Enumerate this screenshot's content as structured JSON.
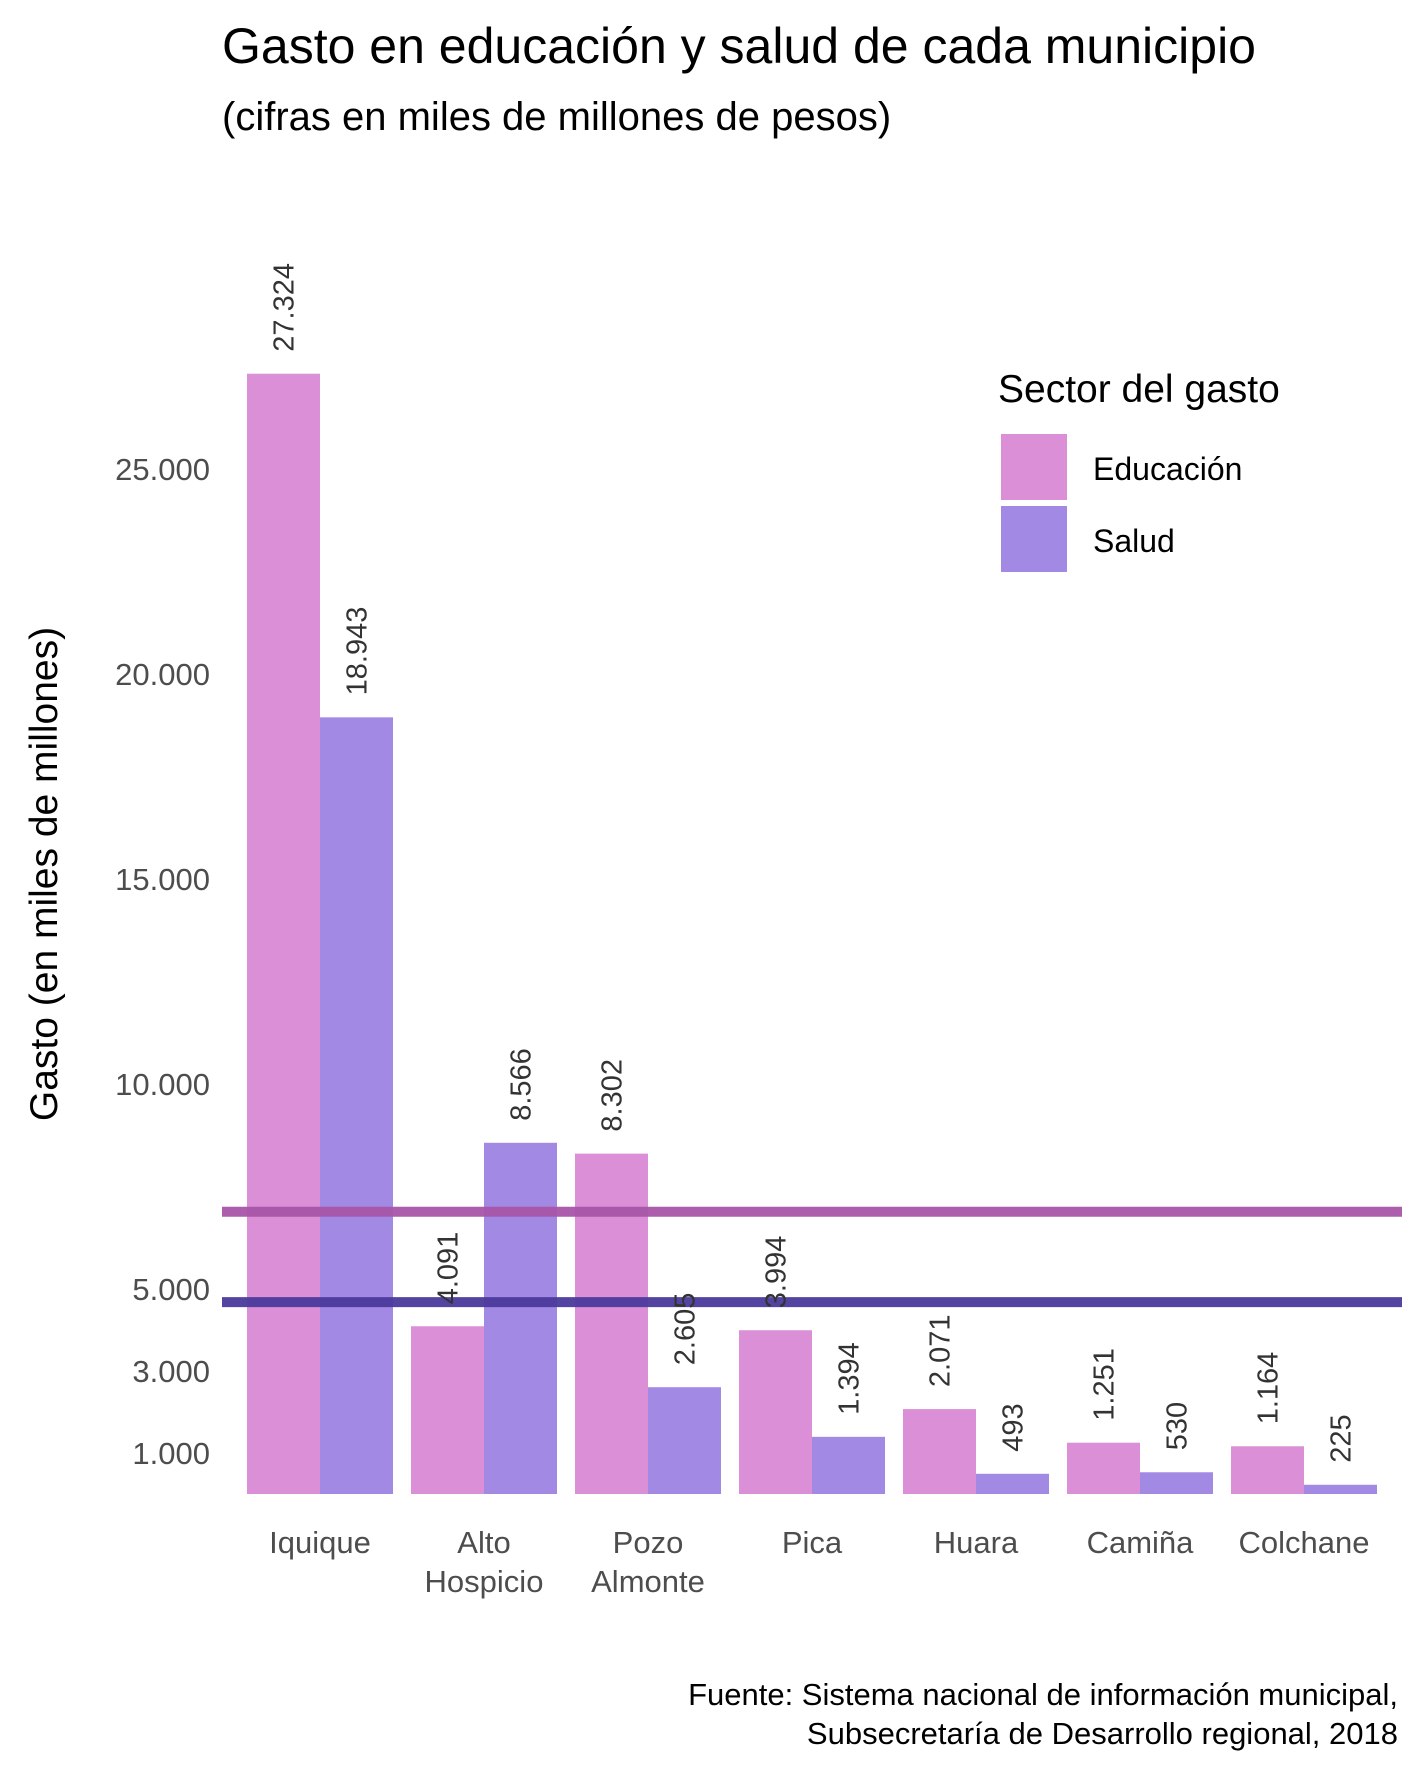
{
  "chart_data": {
    "type": "bar",
    "title": "Gasto en educación y salud de cada municipio",
    "subtitle": "(cifras en miles de millones de pesos)",
    "ylabel": "Gasto (en miles de millones)",
    "caption": [
      "Fuente: Sistema nacional de información municipal,",
      "Subsecretaría de Desarrollo regional, 2018"
    ],
    "y_ticks": [
      {
        "value": 1000,
        "label": "1.000"
      },
      {
        "value": 3000,
        "label": "3.000"
      },
      {
        "value": 5000,
        "label": "5.000"
      },
      {
        "value": 10000,
        "label": "10.000"
      },
      {
        "value": 15000,
        "label": "15.000"
      },
      {
        "value": 20000,
        "label": "20.000"
      },
      {
        "value": 25000,
        "label": "25.000"
      }
    ],
    "ylim": [
      0,
      27324
    ],
    "grid": false,
    "legend": {
      "title": "Sector del gasto",
      "position": "top-right"
    },
    "categories": [
      [
        "Iquique"
      ],
      [
        "Alto",
        "Hospicio"
      ],
      [
        "Pozo",
        "Almonte"
      ],
      [
        "Pica"
      ],
      [
        "Huara"
      ],
      [
        "Camiña"
      ],
      [
        "Colchane"
      ]
    ],
    "series": [
      {
        "name": "Educación",
        "color": "#DA8FD6",
        "values": [
          27324,
          4091,
          8302,
          3994,
          2071,
          1251,
          1164
        ],
        "labels": [
          "27.324",
          "4.091",
          "8.302",
          "3.994",
          "2.071",
          "1.251",
          "1.164"
        ]
      },
      {
        "name": "Salud",
        "color": "#A189E4",
        "values": [
          18943,
          8566,
          2605,
          1394,
          493,
          530,
          225
        ],
        "labels": [
          "18.943",
          "8.566",
          "2.605",
          "1.394",
          "493",
          "530",
          "225"
        ]
      }
    ],
    "reference_lines": [
      {
        "series": "Educación",
        "value": 6885,
        "color": "#A855A8"
      },
      {
        "series": "Salud",
        "value": 4680,
        "color": "#4B3A9C"
      }
    ]
  }
}
